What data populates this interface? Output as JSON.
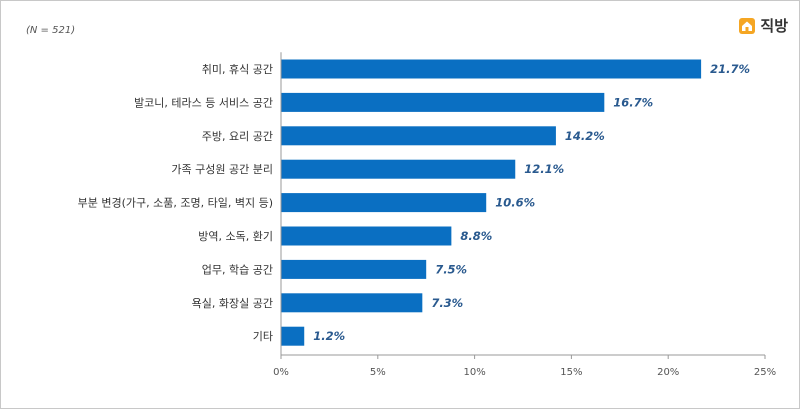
{
  "header": {
    "sample_note": "(N = 521)",
    "logo_text": "직방"
  },
  "chart_data": {
    "type": "bar",
    "orientation": "horizontal",
    "categories": [
      "취미, 휴식 공간",
      "발코니, 테라스 등 서비스 공간",
      "주방, 요리 공간",
      "가족 구성원 공간 분리",
      "부분 변경(가구, 소품, 조명, 타일, 벽지 등)",
      "방역, 소독, 환기",
      "업무, 학습 공간",
      "욕실, 화장실 공간",
      "기타"
    ],
    "values": [
      21.7,
      16.7,
      14.2,
      12.1,
      10.6,
      8.8,
      7.5,
      7.3,
      1.2
    ],
    "value_labels": [
      "21.7%",
      "16.7%",
      "14.2%",
      "12.1%",
      "10.6%",
      "8.8%",
      "7.5%",
      "7.3%",
      "1.2%"
    ],
    "xlim": [
      0,
      25
    ],
    "xticks": [
      0,
      5,
      10,
      15,
      20,
      25
    ],
    "xtick_labels": [
      "0%",
      "5%",
      "10%",
      "15%",
      "20%",
      "25%"
    ],
    "title": "",
    "xlabel": "",
    "ylabel": "",
    "grid": false,
    "colors": {
      "bar": "#0a6fc2",
      "value_label": "#2a5a8f",
      "axis": "#999999"
    }
  }
}
